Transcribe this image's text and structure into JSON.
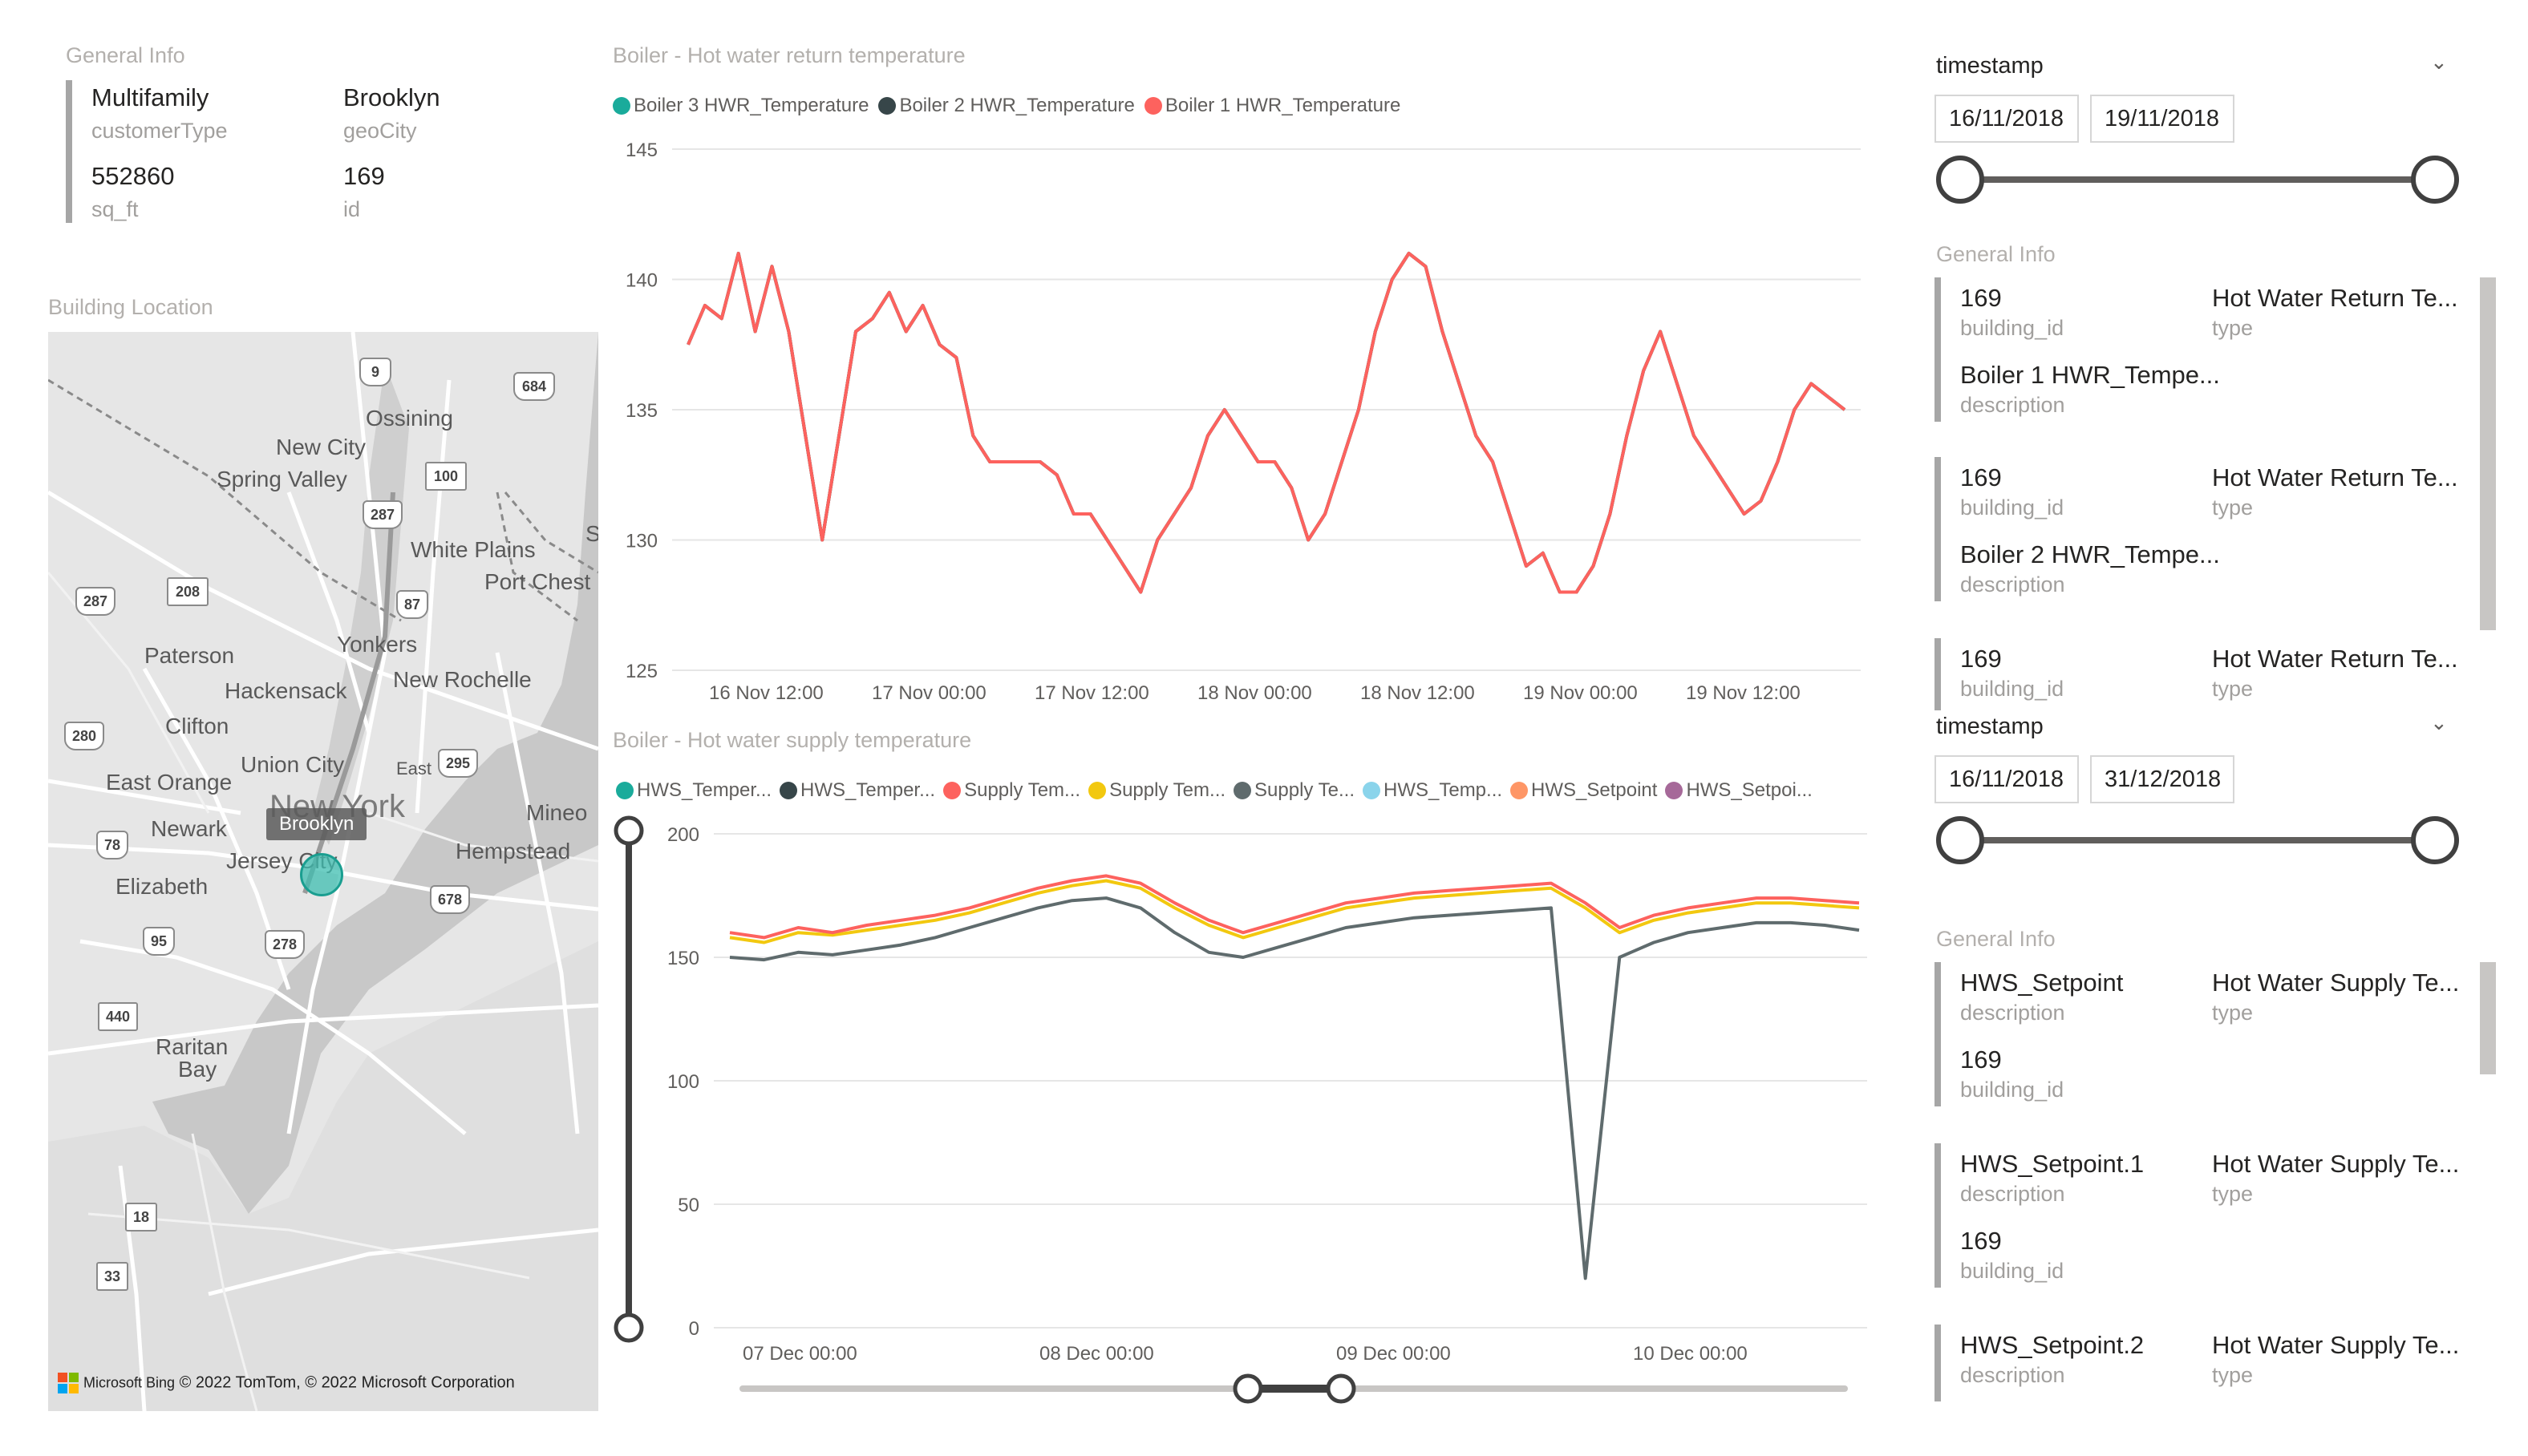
{
  "general_info_top": {
    "title": "General Info",
    "fields": [
      {
        "value": "Multifamily",
        "label": "customerType"
      },
      {
        "value": "Brooklyn",
        "label": "geoCity"
      },
      {
        "value": "552860",
        "label": "sq_ft"
      },
      {
        "value": "169",
        "label": "id"
      }
    ]
  },
  "map": {
    "title": "Building Location",
    "tooltip": "Brooklyn",
    "attribution": "© 2022 TomTom, © 2022 Microsoft Corporation",
    "bing": "Microsoft Bing",
    "places": [
      "Ossining",
      "New City",
      "Spring Valley",
      "White Plains",
      "Port Chest",
      "Yonkers",
      "New Rochelle",
      "Paterson",
      "Hackensack",
      "Clifton",
      "Union City",
      "East Orange",
      "Newark",
      "New York",
      "Jersey City",
      "Elizabeth",
      "Hempstead",
      "Mineo",
      "Raritan",
      "Bay",
      "East",
      "S"
    ],
    "shields": [
      "9",
      "684",
      "100",
      "287",
      "208",
      "287",
      "87",
      "280",
      "295",
      "78",
      "95",
      "278",
      "678",
      "440",
      "18",
      "33"
    ]
  },
  "return_chart": {
    "title": "Boiler - Hot water return temperature",
    "legend": [
      {
        "label": "Boiler 3 HWR_Temperature",
        "color": "#1aab9b"
      },
      {
        "label": "Boiler 2 HWR_Temperature",
        "color": "#374649"
      },
      {
        "label": "Boiler 1 HWR_Temperature",
        "color": "#fd625e"
      }
    ]
  },
  "supply_chart": {
    "title": "Boiler - Hot water supply temperature",
    "legend": [
      {
        "label": "HWS_Temper...",
        "color": "#1aab9b"
      },
      {
        "label": "HWS_Temper...",
        "color": "#374649"
      },
      {
        "label": "Supply Tem...",
        "color": "#fd625e"
      },
      {
        "label": "Supply Tem...",
        "color": "#f2c80f"
      },
      {
        "label": "Supply Te...",
        "color": "#5f6b6d"
      },
      {
        "label": "HWS_Temp...",
        "color": "#8ad4eb"
      },
      {
        "label": "HWS_Setpoint",
        "color": "#fe9666"
      },
      {
        "label": "HWS_Setpoi...",
        "color": "#a66999"
      }
    ]
  },
  "chart_data": [
    {
      "type": "line",
      "title": "Boiler - Hot water return temperature",
      "xlabel": "",
      "ylabel": "",
      "ylim": [
        125,
        145
      ],
      "yticks": [
        "145",
        "140",
        "135",
        "130",
        "125"
      ],
      "xticks": [
        "16 Nov 12:00",
        "17 Nov 00:00",
        "17 Nov 12:00",
        "18 Nov 00:00",
        "18 Nov 12:00",
        "19 Nov 00:00",
        "19 Nov 12:00"
      ],
      "x_hours_from_16_nov_00": [
        0
      ],
      "grid": true,
      "legend_position": "top-left",
      "series": [
        {
          "name": "Boiler 1 HWR_Temperature",
          "color": "#fd625e",
          "values": [
            137.5,
            139,
            138.5,
            141,
            138,
            140.5,
            138,
            134,
            130,
            134,
            138,
            138.5,
            139.5,
            138,
            139,
            137.5,
            137,
            134,
            133,
            133,
            133,
            133,
            132.5,
            131,
            131,
            130,
            129,
            128,
            130,
            131,
            132,
            134,
            135,
            134,
            133,
            133,
            132,
            130,
            131,
            133,
            135,
            138,
            140,
            141,
            140.5,
            138,
            136,
            134,
            133,
            131,
            129,
            129.5,
            128,
            128,
            129,
            131,
            134,
            136.5,
            138,
            136,
            134,
            133,
            132,
            131,
            131.5,
            133,
            135,
            136,
            135.5,
            135
          ]
        },
        {
          "name": "Boiler 2 HWR_Temperature",
          "color": "#374649",
          "values": [
            137.5,
            139,
            138.5,
            141,
            138,
            140.5,
            138,
            134,
            130,
            134,
            138,
            138.5,
            139.5,
            138,
            139,
            137.5,
            137,
            134,
            133,
            133,
            133,
            133,
            132.5,
            131,
            131,
            130,
            129,
            128,
            130,
            131,
            132,
            134,
            135,
            134,
            133,
            133,
            132,
            130,
            131,
            133,
            135,
            138,
            140,
            141,
            140.5,
            138,
            136,
            134,
            133,
            131,
            129,
            129.5,
            128,
            128,
            129,
            131,
            134,
            136.5,
            138,
            136,
            134,
            133,
            132,
            131,
            131.5,
            133,
            135,
            136,
            135.5,
            135
          ]
        },
        {
          "name": "Boiler 3 HWR_Temperature",
          "color": "#1aab9b",
          "values": [
            137.5,
            139,
            138.5,
            141,
            138,
            140.5,
            138,
            134,
            130,
            134,
            138,
            138.5,
            139.5,
            138,
            139,
            137.5,
            137,
            134,
            133,
            133,
            133,
            133,
            132.5,
            131,
            131,
            130,
            129,
            128,
            130,
            131,
            132,
            134,
            135,
            134,
            133,
            133,
            132,
            130,
            131,
            133,
            135,
            138,
            140,
            141,
            140.5,
            138,
            136,
            134,
            133,
            131,
            129,
            129.5,
            128,
            128,
            129,
            131,
            134,
            136.5,
            138,
            136,
            134,
            133,
            132,
            131,
            131.5,
            133,
            135,
            136,
            135.5,
            135
          ]
        }
      ]
    },
    {
      "type": "line",
      "title": "Boiler - Hot water supply temperature",
      "xlabel": "",
      "ylabel": "",
      "ylim": [
        0,
        200
      ],
      "yticks": [
        "200",
        "150",
        "100",
        "50",
        "0"
      ],
      "xticks": [
        "07 Dec 00:00",
        "08 Dec 00:00",
        "09 Dec 00:00",
        "10 Dec 00:00"
      ],
      "grid": true,
      "legend_position": "top-left",
      "series": [
        {
          "name": "Supply Tem...",
          "color": "#f2c80f",
          "values": [
            158,
            156,
            160,
            159,
            161,
            163,
            165,
            168,
            172,
            176,
            179,
            181,
            178,
            170,
            163,
            158,
            162,
            166,
            170,
            172,
            174,
            175,
            176,
            177,
            178,
            170,
            160,
            165,
            168,
            170,
            172,
            172,
            171,
            170
          ]
        },
        {
          "name": "Supply Tem...",
          "color": "#fd625e",
          "values": [
            160,
            158,
            162,
            160,
            163,
            165,
            167,
            170,
            174,
            178,
            181,
            183,
            180,
            172,
            165,
            160,
            164,
            168,
            172,
            174,
            176,
            177,
            178,
            179,
            180,
            172,
            162,
            167,
            170,
            172,
            174,
            174,
            173,
            172
          ]
        },
        {
          "name": "Supply Te...",
          "color": "#5f6b6d",
          "values": [
            150,
            149,
            152,
            151,
            153,
            155,
            158,
            162,
            166,
            170,
            173,
            174,
            170,
            160,
            152,
            150,
            154,
            158,
            162,
            164,
            166,
            167,
            168,
            169,
            170,
            20,
            150,
            156,
            160,
            162,
            164,
            164,
            163,
            161
          ]
        }
      ]
    }
  ],
  "slicer_top": {
    "title": "timestamp",
    "start": "16/11/2018",
    "end": "19/11/2018"
  },
  "general_info_mid": {
    "title": "General Info",
    "rows": [
      {
        "a_val": "169",
        "a_lbl": "building_id",
        "b_val": "Hot Water Return Te...",
        "b_lbl": "type",
        "c_val": "Boiler 1 HWR_Tempe...",
        "c_lbl": "description"
      },
      {
        "a_val": "169",
        "a_lbl": "building_id",
        "b_val": "Hot Water Return Te...",
        "b_lbl": "type",
        "c_val": "Boiler 2 HWR_Tempe...",
        "c_lbl": "description"
      },
      {
        "a_val": "169",
        "a_lbl": "building_id",
        "b_val": "Hot Water Return Te...",
        "b_lbl": "type"
      }
    ]
  },
  "slicer_bottom": {
    "title": "timestamp",
    "start": "16/11/2018",
    "end": "31/12/2018"
  },
  "general_info_bottom": {
    "title": "General Info",
    "rows": [
      {
        "a_val": "HWS_Setpoint",
        "a_lbl": "description",
        "b_val": "Hot Water Supply Te...",
        "b_lbl": "type",
        "c_val": "169",
        "c_lbl": "building_id"
      },
      {
        "a_val": "HWS_Setpoint.1",
        "a_lbl": "description",
        "b_val": "Hot Water Supply Te...",
        "b_lbl": "type",
        "c_val": "169",
        "c_lbl": "building_id"
      },
      {
        "a_val": "HWS_Setpoint.2",
        "a_lbl": "description",
        "b_val": "Hot Water Supply Te...",
        "b_lbl": "type"
      }
    ]
  }
}
